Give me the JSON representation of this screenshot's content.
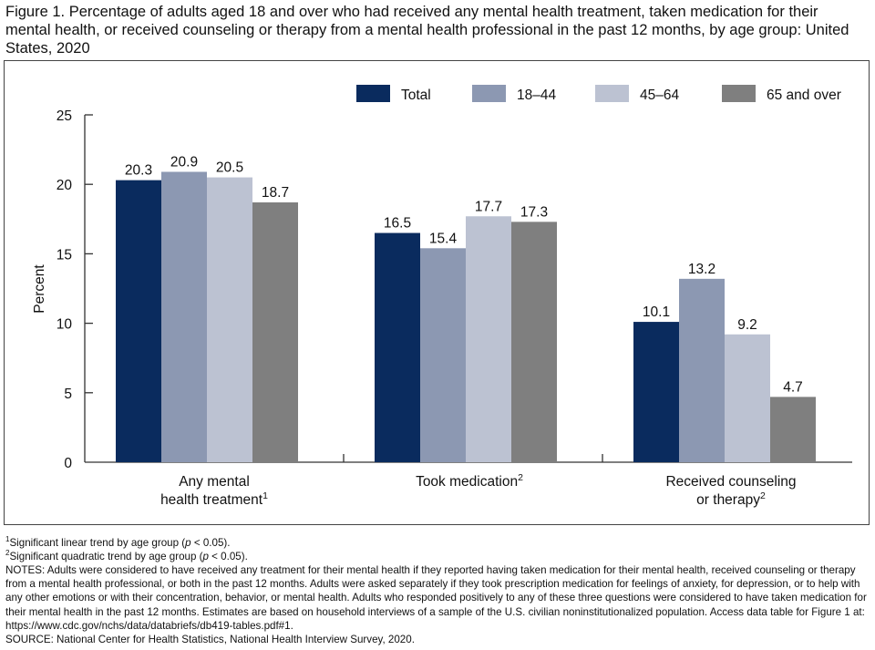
{
  "figure": {
    "title": "Figure 1. Percentage of adults aged 18 and over who had received any mental health treatment, taken medication for their mental health, or received counseling or therapy from a mental health professional in the past 12 months, by age group: United States, 2020"
  },
  "chart_data": {
    "type": "bar",
    "ylabel": "Percent",
    "xlabel": "",
    "ylim": [
      0,
      25
    ],
    "yticks": [
      0,
      5,
      10,
      15,
      20,
      25
    ],
    "grid": false,
    "legend_position": "top-right",
    "categories": [
      {
        "label_lines": [
          "Any mental",
          "health treatment"
        ],
        "sup": "1"
      },
      {
        "label_lines": [
          "Took medication"
        ],
        "sup": "2"
      },
      {
        "label_lines": [
          "Received counseling",
          "or therapy"
        ],
        "sup": "2"
      }
    ],
    "series": [
      {
        "name": "Total",
        "color": "#0a2b5e",
        "values": [
          20.3,
          16.5,
          10.1
        ]
      },
      {
        "name": "18–44",
        "color": "#8c98b2",
        "values": [
          20.9,
          15.4,
          13.2
        ]
      },
      {
        "name": "45–64",
        "color": "#bcc2d2",
        "values": [
          20.5,
          17.7,
          9.2
        ]
      },
      {
        "name": "65 and over",
        "color": "#7f7f7f",
        "values": [
          18.7,
          17.3,
          4.7
        ]
      }
    ]
  },
  "footnotes": {
    "note1_mark": "1",
    "note1_pre": "Significant linear trend by age group (",
    "note1_p": "p",
    "note1_post": " < 0.05).",
    "note2_mark": "2",
    "note2_pre": "Significant quadratic trend by age group (",
    "note2_p": "p",
    "note2_post": " < 0.05).",
    "notes": "NOTES: Adults were considered to have received any treatment for their mental health if they reported having taken medication for their mental health, received counseling or therapy from a mental health professional, or both in the past 12 months. Adults were asked separately if they took prescription medication for feelings of anxiety, for depression, or to help with any other emotions or with their concentration, behavior, or mental health. Adults who responded positively to any of these three questions were considered to have taken medication for their mental health in the past 12 months. Estimates are based on household interviews of a sample of the U.S. civilian noninstitutionalized population. Access data table for Figure 1 at: https://www.cdc.gov/nchs/data/databriefs/db419-tables.pdf#1.",
    "source": "SOURCE: National Center for Health Statistics, National Health Interview Survey, 2020."
  }
}
